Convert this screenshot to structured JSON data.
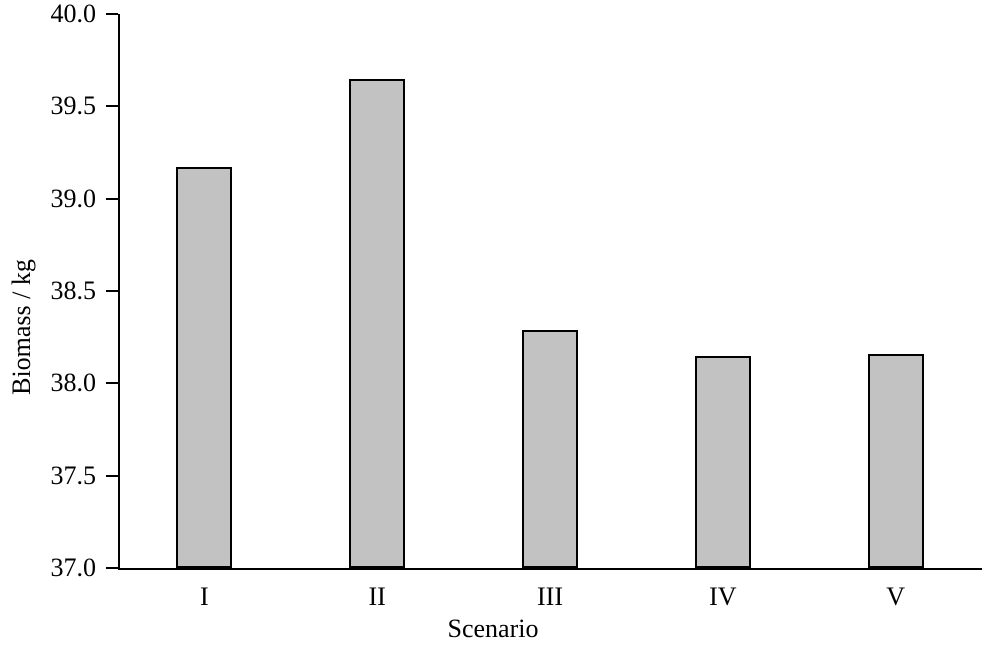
{
  "figure": {
    "background": "#ffffff",
    "text_color": "#000000"
  },
  "chart_data": {
    "type": "bar",
    "title": "",
    "categories": [
      "I",
      "II",
      "III",
      "IV",
      "V"
    ],
    "values": [
      39.17,
      39.65,
      38.29,
      38.15,
      38.16
    ],
    "xlabel": "Scenario",
    "ylabel": "Biomass / kg",
    "ylim": [
      37.0,
      40.0
    ],
    "ytick_step": 0.5,
    "ytick_labels": [
      "37.0",
      "37.5",
      "38.0",
      "38.5",
      "39.0",
      "39.5",
      "40.0"
    ],
    "grid": false,
    "legend": "none",
    "bar_fill_color": "#c2c2c2",
    "bar_border_color": "#000000",
    "axis_color": "#000000"
  }
}
